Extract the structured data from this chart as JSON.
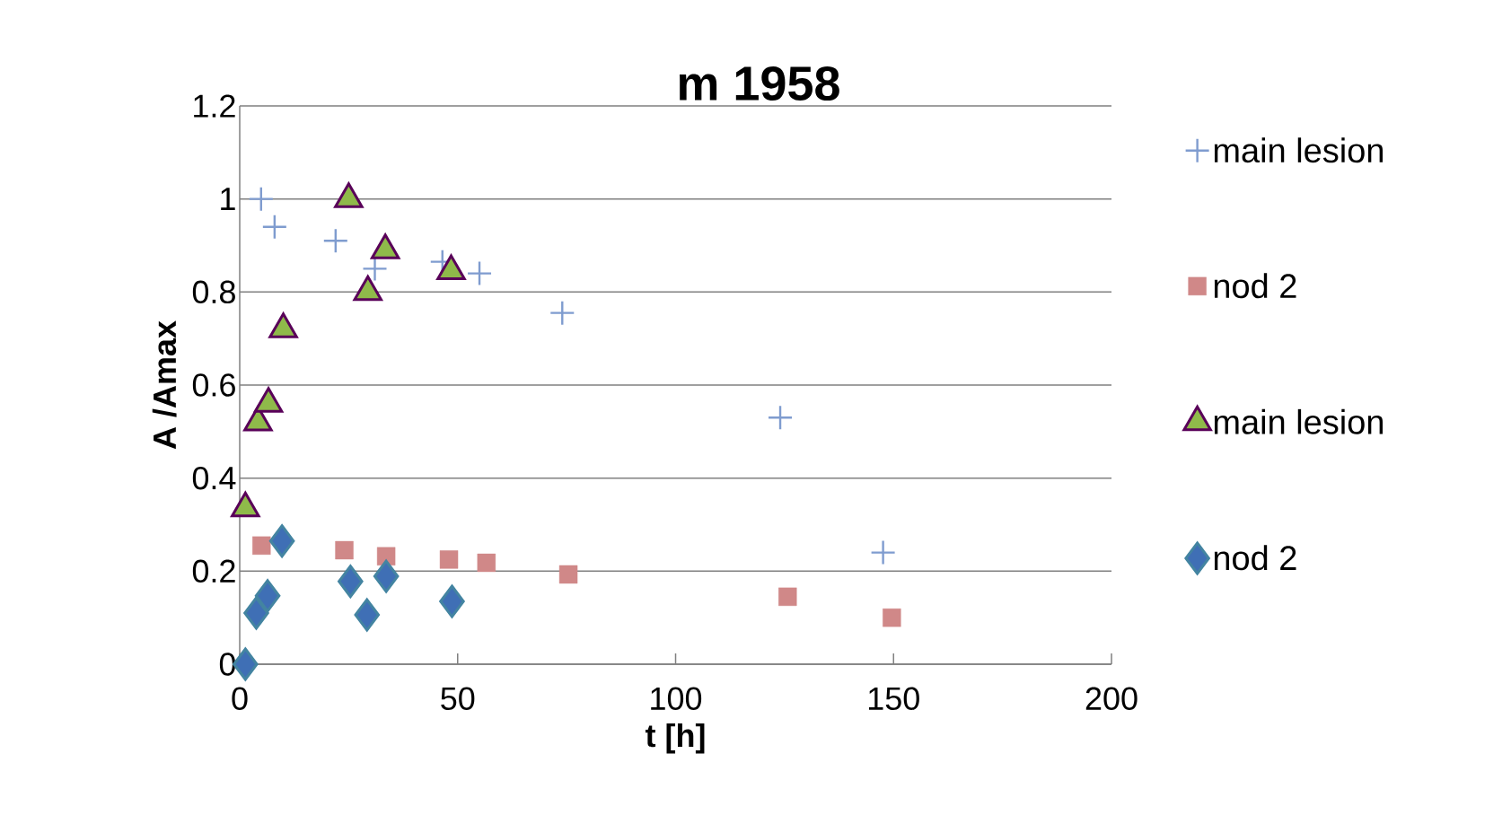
{
  "chart_data": {
    "type": "scatter",
    "title": "m 1958",
    "xlabel": "t [h]",
    "ylabel": "A /Amax",
    "xlim": [
      0,
      200
    ],
    "xticks": [
      0,
      50,
      100,
      150,
      200
    ],
    "ylim": [
      0,
      1.2
    ],
    "yticks": [
      0,
      0.2,
      0.4,
      0.6,
      0.8,
      1,
      1.2
    ],
    "grid": "y",
    "legend": "right",
    "series": [
      {
        "name": "main lesion",
        "color": "#7f9ccf",
        "marker": "cross",
        "x": [
          4.9,
          8,
          22,
          31,
          46.5,
          55,
          74,
          124,
          147.6
        ],
        "values": [
          1.0,
          0.94,
          0.91,
          0.85,
          0.865,
          0.84,
          0.755,
          0.53,
          0.24
        ]
      },
      {
        "name": "nod 2",
        "color": "#d08888",
        "marker": "square",
        "x": [
          5,
          24,
          33.6,
          48,
          56.6,
          75.4,
          125.7,
          149.6
        ],
        "values": [
          0.255,
          0.245,
          0.232,
          0.225,
          0.218,
          0.193,
          0.145,
          0.1
        ]
      },
      {
        "name": "main lesion",
        "color": "#8fba4a",
        "marker": "triangle",
        "x": [
          1.3,
          4.2,
          6.6,
          10,
          25,
          33.4,
          29.4,
          48.5
        ],
        "values": [
          0.335,
          0.52,
          0.56,
          0.72,
          1.0,
          0.89,
          0.8,
          0.845
        ]
      },
      {
        "name": "nod 2",
        "color": "#3f6fb5",
        "marker": "diamond",
        "x": [
          1.3,
          3.8,
          6.4,
          9.7,
          25.4,
          33.6,
          29.2,
          48.7
        ],
        "values": [
          0,
          0.11,
          0.147,
          0.265,
          0.178,
          0.189,
          0.106,
          0.135
        ]
      }
    ]
  }
}
